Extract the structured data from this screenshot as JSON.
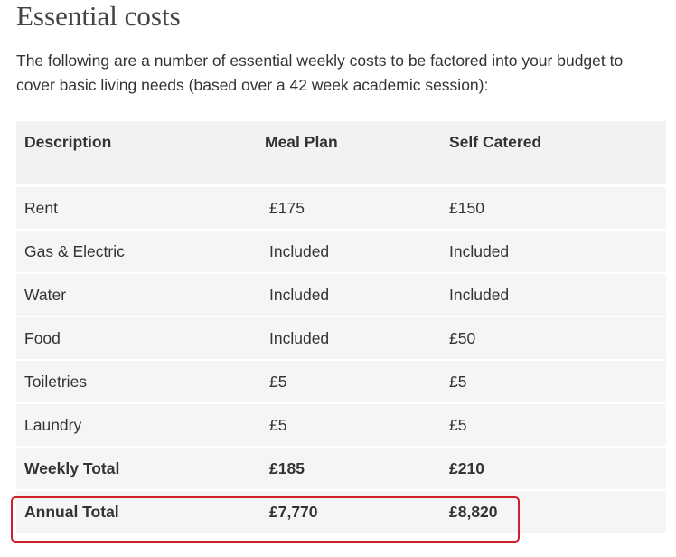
{
  "header": {
    "title": "Essential costs"
  },
  "intro": "The following are a number of essential weekly costs to be factored into your budget to cover basic living needs (based over a 42 week academic session):",
  "table": {
    "columns": [
      "Description",
      "Meal Plan",
      "Self Catered"
    ],
    "rows": [
      [
        "Rent",
        "£175",
        "£150"
      ],
      [
        "Gas & Electric",
        "Included",
        "Included"
      ],
      [
        "Water",
        "Included",
        "Included"
      ],
      [
        "Food",
        "Included",
        "£50"
      ],
      [
        "Toiletries",
        "£5",
        "£5"
      ],
      [
        "Laundry",
        "£5",
        "£5"
      ],
      [
        "Weekly Total",
        "£185",
        "£210"
      ],
      [
        "Annual Total",
        "£7,770",
        "£8,820"
      ]
    ]
  }
}
